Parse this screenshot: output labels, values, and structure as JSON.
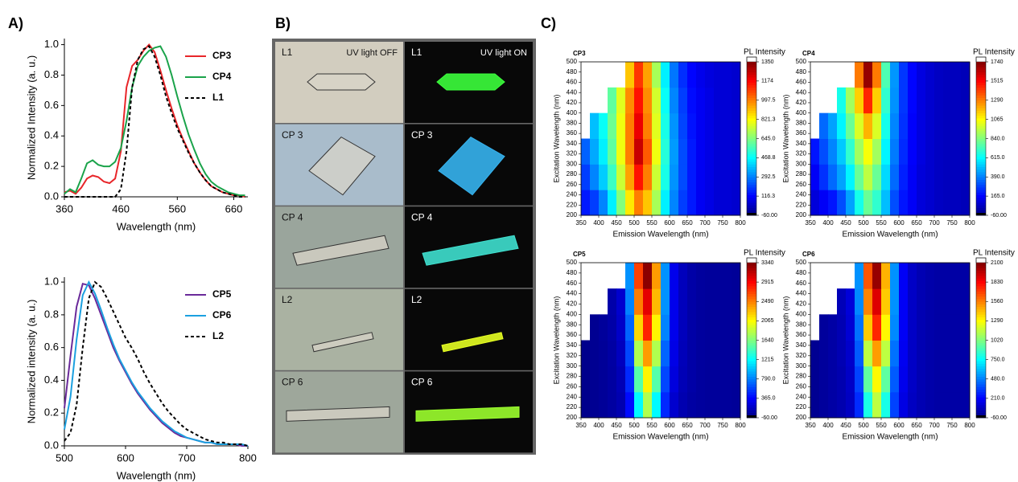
{
  "panel_labels": [
    "A)",
    "B)",
    "C)"
  ],
  "photo_panel": {
    "headers": [
      "UV light OFF",
      "UV light ON"
    ],
    "rows": [
      [
        "L1",
        "L1"
      ],
      [
        "CP 3",
        "CP 3"
      ],
      [
        "CP 4",
        "CP 4"
      ],
      [
        "L2",
        "L2"
      ],
      [
        "CP 6",
        "CP 6"
      ]
    ]
  },
  "chart_data": [
    {
      "type": "line",
      "xlabel": "Wavelength (nm)",
      "ylabel": "Normalized Intensity (a. u.)",
      "legend": "upper right",
      "xlim": [
        360,
        685
      ],
      "xticks": [
        360,
        460,
        560,
        660
      ],
      "ylim": [
        0,
        1.04
      ],
      "yticks": [
        {
          "value": 0,
          "label": "0.0"
        },
        0.2,
        0.4,
        0.6,
        0.8,
        {
          "value": 1,
          "label": "1.0"
        }
      ],
      "x": [
        360,
        370,
        380,
        390,
        400,
        410,
        420,
        430,
        440,
        450,
        460,
        470,
        480,
        490,
        500,
        510,
        520,
        530,
        540,
        550,
        560,
        570,
        580,
        590,
        600,
        610,
        620,
        630,
        640,
        650,
        660,
        670,
        680
      ],
      "series": [
        {
          "name": "CP3",
          "color": "#e8262a",
          "line_style": "solid",
          "values": [
            0.03,
            0.04,
            0.02,
            0.06,
            0.12,
            0.14,
            0.13,
            0.1,
            0.09,
            0.12,
            0.3,
            0.72,
            0.86,
            0.9,
            0.96,
            1.0,
            0.95,
            0.83,
            0.7,
            0.58,
            0.47,
            0.38,
            0.3,
            0.22,
            0.16,
            0.11,
            0.07,
            0.05,
            0.03,
            0.02,
            0.01,
            0.01,
            0
          ]
        },
        {
          "name": "CP4",
          "color": "#1aa34a",
          "line_style": "solid",
          "values": [
            0.02,
            0.05,
            0.03,
            0.12,
            0.22,
            0.24,
            0.21,
            0.2,
            0.2,
            0.23,
            0.32,
            0.5,
            0.72,
            0.86,
            0.92,
            0.96,
            0.98,
            0.99,
            0.92,
            0.8,
            0.66,
            0.53,
            0.41,
            0.31,
            0.22,
            0.15,
            0.1,
            0.07,
            0.05,
            0.03,
            0.02,
            0.01,
            0.01
          ]
        },
        {
          "name": "L1",
          "color": "#000000",
          "line_style": "dashed",
          "values": [
            0,
            0,
            0,
            0,
            0,
            0,
            0,
            0,
            0,
            0,
            0.05,
            0.3,
            0.72,
            0.9,
            0.97,
            0.99,
            0.92,
            0.8,
            0.66,
            0.55,
            0.45,
            0.37,
            0.29,
            0.22,
            0.16,
            0.11,
            0.07,
            0.05,
            0.03,
            0.02,
            0.01,
            0,
            0
          ]
        }
      ]
    },
    {
      "type": "line",
      "xlabel": "Wavelength (nm)",
      "ylabel": "Normalized intensity (a. u.)",
      "legend": "upper right",
      "xlim": [
        500,
        800
      ],
      "xticks": [
        500,
        600,
        700,
        800
      ],
      "ylim": [
        0,
        1.03
      ],
      "yticks": [
        {
          "value": 0,
          "label": "0.0"
        },
        0.2,
        0.4,
        0.6,
        0.8,
        {
          "value": 1,
          "label": "1.0"
        }
      ],
      "x": [
        500,
        510,
        520,
        530,
        540,
        550,
        560,
        570,
        580,
        590,
        600,
        610,
        620,
        630,
        640,
        650,
        660,
        670,
        680,
        690,
        700,
        710,
        720,
        730,
        740,
        750,
        760,
        770,
        780,
        790,
        800
      ],
      "series": [
        {
          "name": "CP5",
          "color": "#6a2a9a",
          "line_style": "solid",
          "values": [
            0.23,
            0.55,
            0.85,
            0.99,
            0.98,
            0.9,
            0.8,
            0.7,
            0.6,
            0.52,
            0.45,
            0.38,
            0.32,
            0.27,
            0.22,
            0.18,
            0.14,
            0.11,
            0.08,
            0.06,
            0.05,
            0.04,
            0.03,
            0.02,
            0.02,
            0.01,
            0.01,
            0.01,
            0.01,
            0,
            0
          ]
        },
        {
          "name": "CP6",
          "color": "#1ba0e0",
          "line_style": "solid",
          "values": [
            0.1,
            0.3,
            0.65,
            0.92,
            1.0,
            0.93,
            0.83,
            0.72,
            0.62,
            0.53,
            0.46,
            0.39,
            0.33,
            0.28,
            0.23,
            0.19,
            0.15,
            0.12,
            0.09,
            0.07,
            0.05,
            0.04,
            0.03,
            0.02,
            0.02,
            0.01,
            0.01,
            0.01,
            0.01,
            0.01,
            0
          ]
        },
        {
          "name": "L2",
          "color": "#000000",
          "line_style": "dashed",
          "values": [
            0.03,
            0.08,
            0.25,
            0.6,
            0.9,
            1.0,
            0.97,
            0.9,
            0.82,
            0.74,
            0.66,
            0.6,
            0.53,
            0.45,
            0.38,
            0.32,
            0.26,
            0.21,
            0.17,
            0.13,
            0.1,
            0.08,
            0.06,
            0.04,
            0.03,
            0.02,
            0.02,
            0.01,
            0.01,
            0.01,
            0
          ]
        }
      ]
    },
    {
      "type": "heatmap",
      "title": "CP3",
      "xlabel": "Emission Wavelength (nm)",
      "ylabel": "Excitation Wavelength (nm)",
      "colorbar_title": "PL Intensity",
      "xlim": [
        350,
        800
      ],
      "xticks": [
        350,
        400,
        450,
        500,
        550,
        600,
        650,
        700,
        750,
        800
      ],
      "ylim": [
        200,
        500
      ],
      "yticks": [
        200,
        220,
        240,
        260,
        280,
        300,
        320,
        340,
        360,
        380,
        400,
        420,
        440,
        460,
        480,
        500
      ],
      "x_bins": [
        350,
        375,
        400,
        425,
        450,
        475,
        500,
        525,
        550,
        575,
        600,
        625,
        650,
        675,
        700,
        725,
        750,
        775,
        800
      ],
      "y_bins": [
        200,
        250,
        300,
        350,
        400,
        450,
        500
      ],
      "zlim": [
        -60,
        1350
      ],
      "zticks": [
        1350,
        1174,
        997.5,
        821.3,
        {
          "value": 645,
          "label": "645.0"
        },
        468.8,
        292.5,
        116.3,
        {
          "value": -60,
          "label": "-60.00"
        }
      ],
      "z": [
        [
          150,
          200,
          300,
          450,
          650,
          850,
          1000,
          900,
          700,
          450,
          300,
          200,
          150,
          100,
          80,
          60,
          60,
          50
        ],
        [
          200,
          300,
          400,
          550,
          750,
          950,
          1150,
          1000,
          750,
          500,
          320,
          220,
          150,
          100,
          80,
          60,
          60,
          50
        ],
        [
          250,
          350,
          450,
          600,
          800,
          1000,
          1250,
          1050,
          800,
          520,
          330,
          220,
          150,
          100,
          80,
          60,
          60,
          50
        ],
        [
          null,
          380,
          480,
          620,
          800,
          1000,
          1200,
          1000,
          780,
          500,
          320,
          210,
          140,
          100,
          80,
          60,
          60,
          50
        ],
        [
          null,
          null,
          null,
          600,
          780,
          980,
          1150,
          980,
          760,
          480,
          300,
          200,
          130,
          100,
          80,
          60,
          60,
          50
        ],
        [
          null,
          null,
          null,
          null,
          null,
          900,
          1100,
          950,
          700,
          450,
          280,
          180,
          120,
          90,
          70,
          60,
          60,
          50
        ]
      ]
    },
    {
      "type": "heatmap",
      "title": "CP4",
      "xlabel": "Emission Wavelength (nm)",
      "ylabel": "Excitation Wavelength (nm)",
      "colorbar_title": "PL Intensity",
      "xlim": [
        350,
        800
      ],
      "xticks": [
        350,
        400,
        450,
        500,
        550,
        600,
        650,
        700,
        750,
        800
      ],
      "ylim": [
        200,
        500
      ],
      "yticks": [
        200,
        220,
        240,
        260,
        280,
        300,
        320,
        340,
        360,
        380,
        400,
        420,
        440,
        460,
        480,
        500
      ],
      "x_bins": [
        350,
        375,
        400,
        425,
        450,
        475,
        500,
        525,
        550,
        575,
        600,
        625,
        650,
        675,
        700,
        725,
        750,
        775,
        800
      ],
      "y_bins": [
        200,
        250,
        300,
        350,
        400,
        450,
        500
      ],
      "zlim": [
        -60,
        1740
      ],
      "zticks": [
        1740,
        1515,
        1290,
        1065,
        {
          "value": 840,
          "label": "840.0"
        },
        {
          "value": 615,
          "label": "615.0"
        },
        {
          "value": 390,
          "label": "390.0"
        },
        {
          "value": 165,
          "label": "165.0"
        },
        {
          "value": -60,
          "label": "-60.00"
        }
      ],
      "z": [
        [
          100,
          150,
          200,
          300,
          450,
          650,
          800,
          700,
          500,
          300,
          200,
          150,
          100,
          80,
          60,
          50,
          50,
          40
        ],
        [
          150,
          250,
          350,
          450,
          600,
          800,
          950,
          800,
          550,
          350,
          220,
          150,
          100,
          80,
          60,
          50,
          50,
          40
        ],
        [
          200,
          300,
          400,
          520,
          700,
          900,
          1050,
          900,
          600,
          380,
          240,
          160,
          110,
          80,
          60,
          50,
          50,
          40
        ],
        [
          null,
          350,
          450,
          600,
          800,
          1000,
          1200,
          1000,
          650,
          400,
          250,
          160,
          110,
          80,
          60,
          50,
          50,
          40
        ],
        [
          null,
          null,
          null,
          650,
          900,
          1150,
          1450,
          1150,
          700,
          420,
          260,
          170,
          110,
          80,
          60,
          50,
          50,
          40
        ],
        [
          null,
          null,
          null,
          null,
          null,
          1300,
          1700,
          1300,
          750,
          430,
          260,
          170,
          110,
          80,
          60,
          50,
          50,
          40
        ]
      ]
    },
    {
      "type": "heatmap",
      "title": "CP5",
      "xlabel": "Emission Wavelength (nm)",
      "ylabel": "Excitation Wavelength (nm)",
      "colorbar_title": "PL Intensity",
      "xlim": [
        350,
        800
      ],
      "xticks": [
        350,
        400,
        450,
        500,
        550,
        600,
        650,
        700,
        750,
        800
      ],
      "ylim": [
        200,
        500
      ],
      "yticks": [
        200,
        220,
        240,
        260,
        280,
        300,
        320,
        340,
        360,
        380,
        400,
        420,
        440,
        460,
        480,
        500
      ],
      "x_bins": [
        350,
        375,
        400,
        425,
        450,
        475,
        500,
        525,
        550,
        575,
        600,
        625,
        650,
        675,
        700,
        725,
        750,
        775,
        800
      ],
      "y_bins": [
        200,
        250,
        300,
        350,
        400,
        450,
        500
      ],
      "zlim": [
        -60,
        3340
      ],
      "zticks": [
        3340,
        2915,
        2490,
        2065,
        1640,
        1215,
        {
          "value": 790,
          "label": "790.0"
        },
        {
          "value": 365,
          "label": "365.0"
        },
        {
          "value": -60,
          "label": "-60.00"
        }
      ],
      "z": [
        [
          -20,
          0,
          20,
          50,
          100,
          400,
          1200,
          1800,
          1200,
          500,
          200,
          100,
          60,
          40,
          30,
          30,
          30,
          20
        ],
        [
          -20,
          0,
          20,
          50,
          120,
          500,
          1500,
          2100,
          1500,
          600,
          250,
          120,
          70,
          40,
          30,
          30,
          30,
          20
        ],
        [
          -20,
          0,
          20,
          60,
          150,
          600,
          1800,
          2400,
          1800,
          700,
          280,
          130,
          70,
          40,
          30,
          30,
          30,
          20
        ],
        [
          null,
          0,
          30,
          70,
          180,
          700,
          2200,
          2800,
          2100,
          800,
          300,
          140,
          70,
          40,
          30,
          30,
          30,
          20
        ],
        [
          null,
          null,
          null,
          80,
          200,
          800,
          2500,
          3000,
          2300,
          850,
          300,
          140,
          70,
          40,
          30,
          30,
          30,
          20
        ],
        [
          null,
          null,
          null,
          null,
          null,
          850,
          2700,
          3300,
          2400,
          850,
          300,
          140,
          70,
          40,
          30,
          30,
          30,
          20
        ]
      ]
    },
    {
      "type": "heatmap",
      "title": "CP6",
      "xlabel": "Emission Wavelength (nm)",
      "ylabel": "Excitation Wavelength (nm)",
      "colorbar_title": "PL Intensity",
      "xlim": [
        350,
        800
      ],
      "xticks": [
        350,
        400,
        450,
        500,
        550,
        600,
        650,
        700,
        750,
        800
      ],
      "ylim": [
        200,
        500
      ],
      "yticks": [
        200,
        220,
        240,
        260,
        280,
        300,
        320,
        340,
        360,
        380,
        400,
        420,
        440,
        460,
        480,
        500
      ],
      "x_bins": [
        350,
        375,
        400,
        425,
        450,
        475,
        500,
        525,
        550,
        575,
        600,
        625,
        650,
        675,
        700,
        725,
        750,
        775,
        800
      ],
      "y_bins": [
        200,
        250,
        300,
        350,
        400,
        450,
        500
      ],
      "zlim": [
        -60,
        2100
      ],
      "zticks": [
        2100,
        1830,
        1560,
        1290,
        1020,
        {
          "value": 750,
          "label": "750.0"
        },
        {
          "value": 480,
          "label": "480.0"
        },
        {
          "value": 210,
          "label": "210.0"
        },
        {
          "value": -60,
          "label": "-60.00"
        }
      ],
      "z": [
        [
          -20,
          0,
          20,
          40,
          80,
          300,
          800,
          1150,
          800,
          350,
          150,
          80,
          50,
          30,
          20,
          20,
          20,
          20
        ],
        [
          -20,
          0,
          20,
          40,
          90,
          350,
          950,
          1300,
          950,
          400,
          170,
          90,
          50,
          30,
          20,
          20,
          20,
          20
        ],
        [
          -20,
          0,
          20,
          50,
          100,
          400,
          1150,
          1500,
          1150,
          450,
          180,
          90,
          50,
          30,
          20,
          20,
          20,
          20
        ],
        [
          null,
          0,
          20,
          50,
          120,
          450,
          1400,
          1750,
          1300,
          500,
          190,
          90,
          50,
          30,
          20,
          20,
          20,
          20
        ],
        [
          null,
          null,
          null,
          60,
          130,
          500,
          1550,
          1900,
          1400,
          520,
          190,
          90,
          50,
          30,
          20,
          20,
          20,
          20
        ],
        [
          null,
          null,
          null,
          null,
          null,
          520,
          1650,
          2050,
          1450,
          520,
          190,
          90,
          50,
          30,
          20,
          20,
          20,
          20
        ]
      ]
    }
  ]
}
